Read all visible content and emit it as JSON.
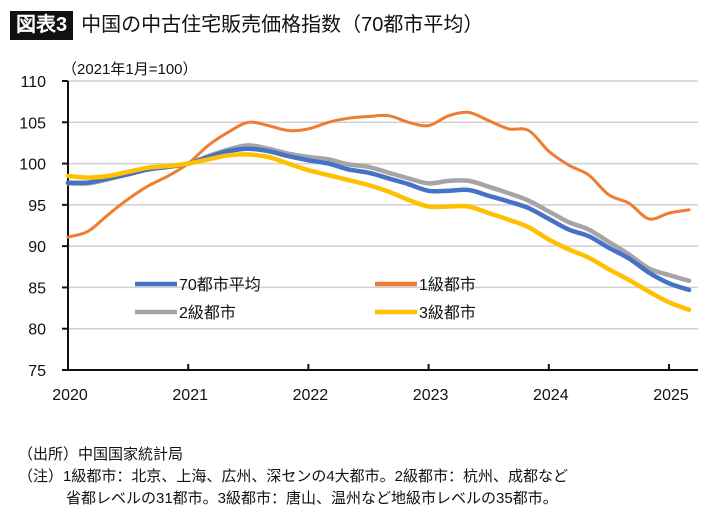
{
  "header": {
    "badge": "図表3",
    "title": "中国の中古住宅販売価格指数（70都市平均）"
  },
  "unit_note": "（2021年1月=100）",
  "notes": {
    "source": "（出所）中国国家統計局",
    "note_line1": "（注）1級都市：北京、上海、広州、深センの4大都市。2級都市：杭州、成都など",
    "note_line2": "省都レベルの31都市。3級都市：唐山、温州など地級市レベルの35都市。"
  },
  "chart_data": {
    "type": "line",
    "title": "中国の中古住宅販売価格指数（70都市平均）",
    "xlabel": "",
    "ylabel": "（2021年1月=100）",
    "ylim": [
      75,
      110
    ],
    "yticks": [
      75,
      80,
      85,
      90,
      95,
      100,
      105,
      110
    ],
    "xlim": [
      2020.0,
      2025.25
    ],
    "xticks": [
      2020,
      2021,
      2022,
      2023,
      2024,
      2025
    ],
    "grid": true,
    "legend_position": "lower-center",
    "x": [
      2020.0,
      2020.167,
      2020.333,
      2020.5,
      2020.667,
      2020.833,
      2021.0,
      2021.167,
      2021.333,
      2021.5,
      2021.667,
      2021.833,
      2022.0,
      2022.167,
      2022.333,
      2022.5,
      2022.667,
      2022.833,
      2023.0,
      2023.167,
      2023.333,
      2023.5,
      2023.667,
      2023.833,
      2024.0,
      2024.167,
      2024.333,
      2024.5,
      2024.667,
      2024.833,
      2025.0,
      2025.167
    ],
    "series": [
      {
        "name": "70都市平均",
        "color": "#4472C4",
        "values": [
          97.7,
          97.7,
          98.2,
          98.7,
          99.3,
          99.6,
          100.0,
          100.8,
          101.5,
          101.8,
          101.5,
          100.9,
          100.4,
          100.0,
          99.3,
          98.9,
          98.2,
          97.5,
          96.7,
          96.7,
          96.8,
          96.1,
          95.4,
          94.6,
          93.3,
          92.0,
          91.2,
          89.8,
          88.5,
          86.8,
          85.5,
          84.7
        ]
      },
      {
        "name": "1級都市",
        "color": "#ED7D31",
        "values": [
          91.1,
          91.8,
          93.8,
          95.7,
          97.3,
          98.5,
          100.0,
          102.2,
          103.8,
          105.0,
          104.6,
          104.0,
          104.2,
          105.0,
          105.5,
          105.7,
          105.8,
          105.0,
          104.6,
          105.8,
          106.2,
          105.2,
          104.2,
          104.0,
          101.5,
          99.8,
          98.6,
          96.2,
          95.2,
          93.3,
          94.0,
          94.4
        ]
      },
      {
        "name": "2級都市",
        "color": "#A5A5A5",
        "values": [
          97.6,
          97.6,
          98.1,
          98.7,
          99.3,
          99.6,
          100.0,
          100.9,
          101.7,
          102.2,
          101.8,
          101.2,
          100.8,
          100.5,
          99.9,
          99.6,
          98.9,
          98.2,
          97.6,
          97.9,
          97.9,
          97.2,
          96.4,
          95.5,
          94.2,
          92.9,
          92.0,
          90.5,
          89.0,
          87.3,
          86.5,
          85.8
        ]
      },
      {
        "name": "3級都市",
        "color": "#FFC000",
        "values": [
          98.5,
          98.3,
          98.5,
          99.0,
          99.5,
          99.7,
          100.0,
          100.5,
          101.0,
          101.1,
          100.8,
          100.0,
          99.2,
          98.6,
          98.0,
          97.4,
          96.6,
          95.6,
          94.8,
          94.8,
          94.8,
          94.0,
          93.2,
          92.3,
          90.8,
          89.6,
          88.6,
          87.2,
          85.9,
          84.5,
          83.2,
          82.3
        ]
      }
    ]
  }
}
